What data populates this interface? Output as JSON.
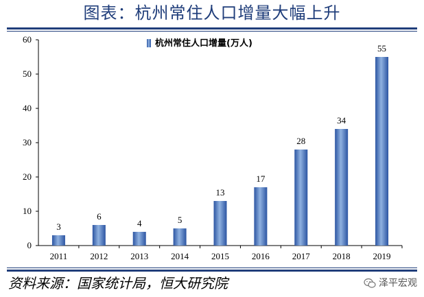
{
  "title": "图表：杭州常住人口增量大幅上升",
  "source": "资料来源：国家统计局，恒大研究院",
  "watermark": {
    "text": "泽平宏观",
    "icon": "wechat-icon"
  },
  "colors": {
    "bar_dark": "#2c55a2",
    "bar_light": "#8fb1e0",
    "rule": "#1f3d7a"
  },
  "chart_data": {
    "type": "bar",
    "categories": [
      "2011",
      "2012",
      "2013",
      "2014",
      "2015",
      "2016",
      "2017",
      "2018",
      "2019"
    ],
    "series": [
      {
        "name": "杭州常住人口增量(万人)",
        "values": [
          3,
          6,
          4,
          5,
          13,
          17,
          28,
          34,
          55
        ]
      }
    ],
    "data_labels": [
      "3",
      "6",
      "4",
      "5",
      "13",
      "17",
      "28",
      "34",
      "55"
    ],
    "ylim": [
      0,
      60
    ],
    "yticks": [
      0,
      10,
      20,
      30,
      40,
      50,
      60
    ],
    "xlabel": "",
    "ylabel": "",
    "legend_position": "top-center",
    "grid": false
  }
}
